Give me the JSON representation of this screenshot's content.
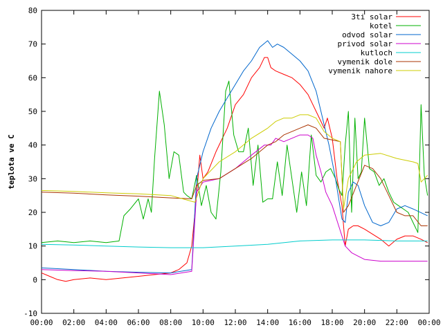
{
  "chart_data": {
    "type": "line",
    "ylabel": "teplota ve C",
    "xlabel": "",
    "title": "",
    "ylim": [
      -10,
      80
    ],
    "xlim": [
      0,
      24
    ],
    "y_ticks": [
      "-10",
      "0",
      "10",
      "20",
      "30",
      "40",
      "50",
      "60",
      "70",
      "80"
    ],
    "y_tick_values": [
      -10,
      0,
      10,
      20,
      30,
      40,
      50,
      60,
      70,
      80
    ],
    "x_ticks": [
      "00:00",
      "02:00",
      "04:00",
      "06:00",
      "08:00",
      "10:00",
      "12:00",
      "14:00",
      "16:00",
      "18:00",
      "20:00",
      "22:00",
      "00:00"
    ],
    "x_tick_values": [
      0,
      2,
      4,
      6,
      8,
      10,
      12,
      14,
      16,
      18,
      20,
      22,
      24
    ],
    "grid": false,
    "legend_position": "top-right",
    "series": [
      {
        "name": "3ti solar",
        "color": "#ff0000",
        "points": [
          [
            0,
            2
          ],
          [
            0.5,
            1
          ],
          [
            1,
            0
          ],
          [
            1.5,
            -0.5
          ],
          [
            2,
            0
          ],
          [
            3,
            0.5
          ],
          [
            4,
            0
          ],
          [
            5,
            0.5
          ],
          [
            6,
            1
          ],
          [
            7,
            1.5
          ],
          [
            8,
            2
          ],
          [
            8.5,
            3
          ],
          [
            9,
            5
          ],
          [
            9.3,
            10
          ],
          [
            9.6,
            25
          ],
          [
            9.8,
            37
          ],
          [
            10,
            30
          ],
          [
            10.3,
            32
          ],
          [
            10.8,
            38
          ],
          [
            11.5,
            45
          ],
          [
            12,
            52
          ],
          [
            12.5,
            55
          ],
          [
            13,
            60
          ],
          [
            13.5,
            63
          ],
          [
            13.8,
            66
          ],
          [
            14,
            66
          ],
          [
            14.2,
            63
          ],
          [
            14.5,
            62
          ],
          [
            15,
            61
          ],
          [
            15.5,
            60
          ],
          [
            16,
            58
          ],
          [
            16.5,
            55
          ],
          [
            17,
            50
          ],
          [
            17.3,
            47
          ],
          [
            17.5,
            45
          ],
          [
            17.7,
            48
          ],
          [
            18,
            42
          ],
          [
            18.3,
            30
          ],
          [
            18.6,
            22
          ],
          [
            18.8,
            10
          ],
          [
            19,
            15
          ],
          [
            19.3,
            16
          ],
          [
            19.6,
            16
          ],
          [
            20,
            15
          ],
          [
            21,
            12
          ],
          [
            21.5,
            10
          ],
          [
            22,
            12
          ],
          [
            22.5,
            13
          ],
          [
            23,
            13
          ],
          [
            23.5,
            12
          ],
          [
            23.9,
            11
          ]
        ]
      },
      {
        "name": "kotel",
        "color": "#00b000",
        "points": [
          [
            0,
            11
          ],
          [
            1,
            11.5
          ],
          [
            2,
            11
          ],
          [
            3,
            11.5
          ],
          [
            4,
            11
          ],
          [
            4.8,
            11.5
          ],
          [
            5.1,
            19
          ],
          [
            5.5,
            21
          ],
          [
            6,
            24
          ],
          [
            6.3,
            18
          ],
          [
            6.6,
            24
          ],
          [
            6.8,
            20
          ],
          [
            7,
            36
          ],
          [
            7.3,
            56
          ],
          [
            7.6,
            46
          ],
          [
            7.9,
            30
          ],
          [
            8.2,
            38
          ],
          [
            8.5,
            37
          ],
          [
            8.8,
            26
          ],
          [
            9,
            25
          ],
          [
            9.3,
            24
          ],
          [
            9.6,
            31
          ],
          [
            9.9,
            22
          ],
          [
            10.2,
            28
          ],
          [
            10.5,
            20
          ],
          [
            10.8,
            18
          ],
          [
            11.1,
            32
          ],
          [
            11.4,
            56
          ],
          [
            11.6,
            59
          ],
          [
            11.9,
            43
          ],
          [
            12.2,
            38
          ],
          [
            12.5,
            38
          ],
          [
            12.8,
            45
          ],
          [
            13.1,
            28
          ],
          [
            13.4,
            40
          ],
          [
            13.7,
            23
          ],
          [
            14,
            24
          ],
          [
            14.3,
            24
          ],
          [
            14.6,
            35
          ],
          [
            14.9,
            25
          ],
          [
            15.2,
            40
          ],
          [
            15.5,
            30
          ],
          [
            15.8,
            20
          ],
          [
            16.1,
            32
          ],
          [
            16.4,
            22
          ],
          [
            16.7,
            43
          ],
          [
            17,
            31
          ],
          [
            17.3,
            29
          ],
          [
            17.6,
            32
          ],
          [
            17.9,
            33
          ],
          [
            18.2,
            30
          ],
          [
            18.4,
            27
          ],
          [
            18.6,
            25
          ],
          [
            18.8,
            40
          ],
          [
            19,
            50
          ],
          [
            19.2,
            20
          ],
          [
            19.4,
            48
          ],
          [
            19.6,
            30
          ],
          [
            19.8,
            32
          ],
          [
            20,
            48
          ],
          [
            20.3,
            33
          ],
          [
            20.6,
            32
          ],
          [
            20.9,
            28
          ],
          [
            21.2,
            30
          ],
          [
            21.5,
            26
          ],
          [
            21.8,
            23
          ],
          [
            22.1,
            22
          ],
          [
            22.4,
            21
          ],
          [
            22.7,
            20
          ],
          [
            23,
            17
          ],
          [
            23.3,
            14
          ],
          [
            23.5,
            52
          ],
          [
            23.7,
            31
          ],
          [
            23.9,
            25
          ]
        ]
      },
      {
        "name": "odvod solar",
        "color": "#0066cc",
        "points": [
          [
            0,
            3.5
          ],
          [
            2,
            3
          ],
          [
            4,
            2.5
          ],
          [
            6,
            2.2
          ],
          [
            8,
            2
          ],
          [
            9.3,
            3
          ],
          [
            9.6,
            30
          ],
          [
            10,
            38
          ],
          [
            10.5,
            45
          ],
          [
            11,
            50
          ],
          [
            11.5,
            54
          ],
          [
            12,
            58
          ],
          [
            12.5,
            62
          ],
          [
            13,
            65
          ],
          [
            13.5,
            69
          ],
          [
            14,
            71
          ],
          [
            14.3,
            69
          ],
          [
            14.6,
            70
          ],
          [
            15,
            69
          ],
          [
            15.5,
            67
          ],
          [
            16,
            65
          ],
          [
            16.5,
            62
          ],
          [
            17,
            56
          ],
          [
            17.4,
            48
          ],
          [
            17.8,
            40
          ],
          [
            18.2,
            30
          ],
          [
            18.6,
            18
          ],
          [
            18.8,
            17
          ],
          [
            19,
            26
          ],
          [
            19.3,
            29
          ],
          [
            19.6,
            28
          ],
          [
            20,
            22
          ],
          [
            20.5,
            17
          ],
          [
            21,
            16
          ],
          [
            21.5,
            17
          ],
          [
            22,
            21
          ],
          [
            22.5,
            22
          ],
          [
            23,
            21
          ],
          [
            23.9,
            19
          ]
        ]
      },
      {
        "name": "privod solar",
        "color": "#cc00cc",
        "points": [
          [
            0,
            3
          ],
          [
            2,
            2.7
          ],
          [
            4,
            2.5
          ],
          [
            6,
            2
          ],
          [
            8,
            1.5
          ],
          [
            9.3,
            2.5
          ],
          [
            9.6,
            26
          ],
          [
            10,
            29
          ],
          [
            11,
            30
          ],
          [
            12,
            33
          ],
          [
            13,
            37
          ],
          [
            13.8,
            40
          ],
          [
            14.2,
            40
          ],
          [
            14.5,
            42
          ],
          [
            15,
            41
          ],
          [
            15.5,
            42
          ],
          [
            16,
            43
          ],
          [
            16.5,
            43
          ],
          [
            16.8,
            42
          ],
          [
            17,
            37
          ],
          [
            17.3,
            32
          ],
          [
            17.6,
            26
          ],
          [
            18,
            22
          ],
          [
            18.4,
            16
          ],
          [
            18.8,
            10
          ],
          [
            19.2,
            8
          ],
          [
            19.6,
            7
          ],
          [
            20,
            6
          ],
          [
            21,
            5.5
          ],
          [
            22,
            5.5
          ],
          [
            23,
            5.5
          ],
          [
            23.9,
            5.5
          ]
        ]
      },
      {
        "name": "kutloch",
        "color": "#00cccc",
        "points": [
          [
            0,
            10.5
          ],
          [
            2,
            10.3
          ],
          [
            4,
            10
          ],
          [
            6,
            9.7
          ],
          [
            8,
            9.5
          ],
          [
            10,
            9.5
          ],
          [
            12,
            10
          ],
          [
            14,
            10.5
          ],
          [
            16,
            11.5
          ],
          [
            18,
            11.8
          ],
          [
            20,
            11.8
          ],
          [
            22,
            11.5
          ],
          [
            23.9,
            11.5
          ]
        ]
      },
      {
        "name": "vymenik dole",
        "color": "#aa3300",
        "points": [
          [
            0,
            26
          ],
          [
            2,
            25.7
          ],
          [
            4,
            25.2
          ],
          [
            6,
            24.8
          ],
          [
            8,
            24.3
          ],
          [
            9.3,
            24
          ],
          [
            9.6,
            28
          ],
          [
            10,
            29.5
          ],
          [
            11,
            30
          ],
          [
            12,
            33
          ],
          [
            13,
            36
          ],
          [
            14,
            40
          ],
          [
            14.5,
            41
          ],
          [
            15,
            43
          ],
          [
            15.5,
            44
          ],
          [
            16,
            45
          ],
          [
            16.5,
            46
          ],
          [
            17,
            45
          ],
          [
            17.5,
            42
          ],
          [
            18,
            41.5
          ],
          [
            18.5,
            41
          ],
          [
            18.7,
            20
          ],
          [
            19,
            22
          ],
          [
            19.5,
            28
          ],
          [
            20,
            34
          ],
          [
            20.5,
            33
          ],
          [
            21,
            30
          ],
          [
            21.5,
            25
          ],
          [
            22,
            20
          ],
          [
            22.5,
            19
          ],
          [
            23,
            19
          ],
          [
            23.5,
            16
          ],
          [
            23.9,
            16
          ]
        ]
      },
      {
        "name": "vymenik nahore",
        "color": "#cccc00",
        "points": [
          [
            0,
            26.5
          ],
          [
            2,
            26.2
          ],
          [
            4,
            25.8
          ],
          [
            6,
            25.5
          ],
          [
            8,
            25
          ],
          [
            9.5,
            23
          ],
          [
            10,
            30
          ],
          [
            11,
            35
          ],
          [
            12,
            38
          ],
          [
            13,
            42
          ],
          [
            14,
            45
          ],
          [
            14.5,
            47
          ],
          [
            15,
            48
          ],
          [
            15.5,
            48
          ],
          [
            16,
            49
          ],
          [
            16.5,
            49
          ],
          [
            17,
            48
          ],
          [
            17.5,
            44
          ],
          [
            18,
            42
          ],
          [
            18.5,
            41
          ],
          [
            18.7,
            21
          ],
          [
            19,
            30
          ],
          [
            19.5,
            35
          ],
          [
            20,
            37
          ],
          [
            21,
            37.5
          ],
          [
            22,
            36
          ],
          [
            23,
            35
          ],
          [
            23.3,
            34.5
          ],
          [
            23.5,
            29
          ],
          [
            23.9,
            31
          ]
        ]
      }
    ]
  }
}
